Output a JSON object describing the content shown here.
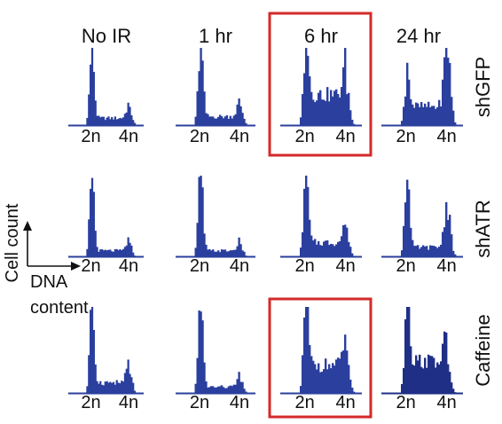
{
  "chart_data": {
    "type": "histogram-grid",
    "columns": [
      "No IR",
      "1 hr",
      "6 hr",
      "24 hr"
    ],
    "rows": [
      "shGFP",
      "shATR",
      "Caffeine"
    ],
    "x_tick_labels": [
      "2n",
      "4n"
    ],
    "axis_legend": {
      "y": "Cell count",
      "x_line1": "DNA",
      "x_line2": "content"
    },
    "highlighted_panels": [
      {
        "row": "shGFP",
        "column": "6 hr"
      },
      {
        "row": "Caffeine",
        "column": "6 hr"
      }
    ],
    "colors": {
      "histogram": "#2b3f9e",
      "histogram_dark": "#1f2f86",
      "highlight": "#d42a2a"
    },
    "panels": [
      {
        "row": "shGFP",
        "column": "No IR",
        "g1_height": 1.0,
        "g2_height": 0.2,
        "s_level": 0.1
      },
      {
        "row": "shGFP",
        "column": "1 hr",
        "g1_height": 1.0,
        "g2_height": 0.22,
        "s_level": 0.12
      },
      {
        "row": "shGFP",
        "column": "6 hr",
        "g1_height": 1.0,
        "g2_height": 0.5,
        "s_level": 0.4
      },
      {
        "row": "shGFP",
        "column": "24 hr",
        "g1_height": 0.6,
        "g2_height": 1.0,
        "s_level": 0.25
      },
      {
        "row": "shATR",
        "column": "No IR",
        "g1_height": 1.0,
        "g2_height": 0.15,
        "s_level": 0.08
      },
      {
        "row": "shATR",
        "column": "1 hr",
        "g1_height": 1.0,
        "g2_height": 0.13,
        "s_level": 0.08
      },
      {
        "row": "shATR",
        "column": "6 hr",
        "g1_height": 1.0,
        "g2_height": 0.3,
        "s_level": 0.18
      },
      {
        "row": "shATR",
        "column": "24 hr",
        "g1_height": 1.0,
        "g2_height": 0.6,
        "s_level": 0.12
      },
      {
        "row": "Caffeine",
        "column": "No IR",
        "g1_height": 1.0,
        "g2_height": 0.25,
        "s_level": 0.13
      },
      {
        "row": "Caffeine",
        "column": "1 hr",
        "g1_height": 1.0,
        "g2_height": 0.14,
        "s_level": 0.08
      },
      {
        "row": "Caffeine",
        "column": "6 hr",
        "g1_height": 1.0,
        "g2_height": 0.42,
        "s_level": 0.33
      },
      {
        "row": "Caffeine",
        "column": "24 hr",
        "g1_height": 1.0,
        "g2_height": 0.35,
        "s_level": 0.38
      }
    ]
  }
}
